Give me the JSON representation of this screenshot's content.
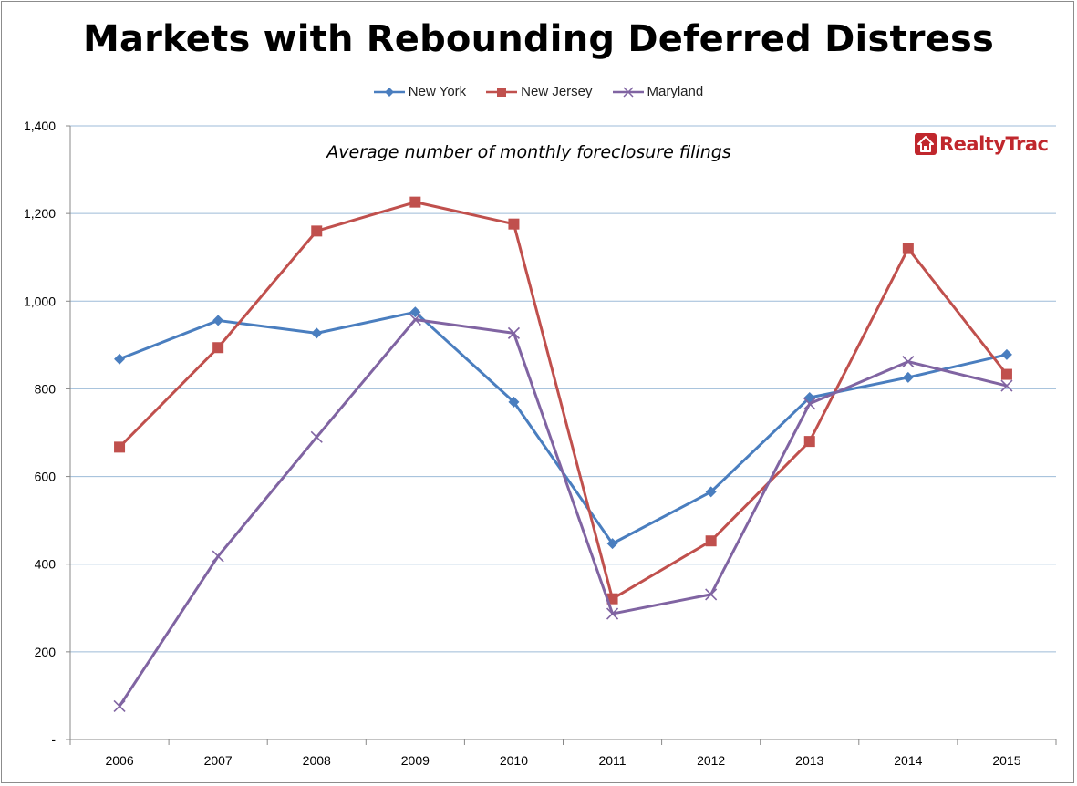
{
  "chart_data": {
    "type": "line",
    "title": "Markets with Rebounding Deferred Distress",
    "subtitle": "Average number of monthly foreclosure filings",
    "xlabel": "",
    "ylabel": "",
    "categories": [
      "2006",
      "2007",
      "2008",
      "2009",
      "2010",
      "2011",
      "2012",
      "2013",
      "2014",
      "2015"
    ],
    "ylim": [
      0,
      1400
    ],
    "yticks": [
      0,
      200,
      400,
      600,
      800,
      1000,
      1200,
      1400
    ],
    "ytick_labels": [
      "-",
      "200",
      "400",
      "600",
      "800",
      "1,000",
      "1,200",
      "1,400"
    ],
    "grid": true,
    "legend_position": "top",
    "series": [
      {
        "name": "New York",
        "color": "#4a7ebf",
        "marker": "diamond",
        "values": [
          868,
          956,
          927,
          975,
          770,
          447,
          565,
          780,
          826,
          878
        ]
      },
      {
        "name": "New Jersey",
        "color": "#c0504d",
        "marker": "square",
        "values": [
          667,
          894,
          1160,
          1226,
          1176,
          321,
          453,
          680,
          1120,
          833
        ]
      },
      {
        "name": "Maryland",
        "color": "#8064a2",
        "marker": "x",
        "values": [
          76,
          418,
          690,
          958,
          927,
          287,
          331,
          766,
          862,
          807
        ]
      }
    ]
  },
  "logo": {
    "text": "RealtyTrac",
    "icon": "house-icon",
    "color": "#c0272d"
  }
}
